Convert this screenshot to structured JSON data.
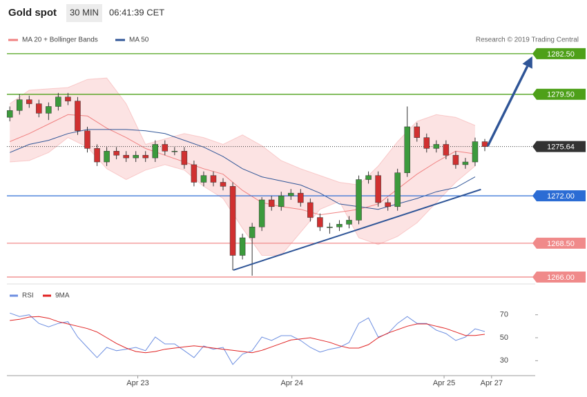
{
  "header": {
    "title": "Gold spot",
    "interval": "30 MIN",
    "time": "06:41:39 CET",
    "credit": "Research © 2019 Trading Central"
  },
  "chart_data": [
    {
      "type": "candlestick",
      "xlim": [
        -0.3,
        54.2
      ],
      "ylim": [
        1265.59,
        1283.41
      ],
      "x": [
        0,
        1,
        2,
        3,
        4,
        5,
        6,
        7,
        8,
        9,
        10,
        11,
        12,
        13,
        14,
        15,
        16,
        17,
        18,
        19,
        20,
        21,
        22,
        23,
        24,
        25,
        26,
        27,
        28,
        29,
        30,
        31,
        32,
        33,
        34,
        35,
        36,
        37,
        38,
        39,
        40,
        41,
        42,
        43,
        44,
        45,
        46,
        47,
        48,
        49
      ],
      "open": [
        1277.8,
        1278.3,
        1279.1,
        1278.8,
        1278.1,
        1278.6,
        1279.3,
        1279.0,
        1276.8,
        1275.5,
        1274.5,
        1275.3,
        1275.0,
        1274.8,
        1275.0,
        1274.8,
        1275.8,
        1275.3,
        1275.3,
        1274.3,
        1273.0,
        1273.5,
        1273.0,
        1272.7,
        1267.6,
        1268.9,
        1269.7,
        1271.7,
        1271.2,
        1272.0,
        1272.2,
        1271.5,
        1270.4,
        1269.7,
        1269.7,
        1269.9,
        1270.2,
        1273.2,
        1273.5,
        1271.5,
        1271.2,
        1273.7,
        1277.1,
        1276.3,
        1275.5,
        1275.8,
        1275.0,
        1274.3,
        1274.5,
        1276.0
      ],
      "high": [
        1278.6,
        1279.5,
        1279.4,
        1279.1,
        1278.9,
        1279.6,
        1279.6,
        1279.3,
        1277.1,
        1275.8,
        1275.6,
        1275.6,
        1275.3,
        1275.3,
        1275.3,
        1276.1,
        1276.1,
        1275.6,
        1275.6,
        1274.6,
        1273.8,
        1273.8,
        1273.3,
        1273.0,
        1269.2,
        1270.0,
        1271.9,
        1272.0,
        1272.3,
        1272.5,
        1272.5,
        1271.8,
        1270.7,
        1270.0,
        1270.2,
        1270.5,
        1273.5,
        1273.8,
        1273.8,
        1271.8,
        1274.0,
        1278.6,
        1277.4,
        1276.6,
        1276.1,
        1276.1,
        1275.3,
        1274.8,
        1276.3,
        1276.2
      ],
      "low": [
        1277.5,
        1278.0,
        1278.5,
        1277.8,
        1277.6,
        1278.3,
        1278.7,
        1276.5,
        1275.2,
        1274.2,
        1274.2,
        1274.7,
        1274.5,
        1274.5,
        1274.5,
        1274.5,
        1275.0,
        1275.0,
        1274.0,
        1272.7,
        1272.7,
        1272.7,
        1272.4,
        1266.5,
        1267.3,
        1266.1,
        1269.4,
        1270.9,
        1270.9,
        1271.7,
        1271.2,
        1270.1,
        1269.4,
        1269.2,
        1269.4,
        1269.6,
        1269.9,
        1272.9,
        1271.2,
        1270.9,
        1270.9,
        1273.4,
        1276.0,
        1275.2,
        1275.2,
        1274.7,
        1274.0,
        1274.0,
        1274.2,
        1275.3
      ],
      "close": [
        1278.3,
        1279.1,
        1278.8,
        1278.1,
        1278.6,
        1279.3,
        1279.0,
        1276.8,
        1275.5,
        1274.5,
        1275.3,
        1275.0,
        1274.8,
        1275.0,
        1274.8,
        1275.8,
        1275.3,
        1275.3,
        1274.3,
        1273.0,
        1273.5,
        1273.0,
        1272.7,
        1267.6,
        1268.9,
        1269.7,
        1271.7,
        1271.2,
        1272.0,
        1272.2,
        1271.5,
        1270.4,
        1269.7,
        1269.7,
        1269.9,
        1270.2,
        1273.2,
        1273.5,
        1271.5,
        1271.2,
        1273.7,
        1277.1,
        1276.3,
        1275.5,
        1275.8,
        1275.0,
        1274.3,
        1274.5,
        1276.0,
        1275.64
      ],
      "up_color": "#3c9a3c",
      "down_color": "#d03030",
      "series": [
        {
          "name": "MA 20 + Bollinger Bands",
          "color": "#f08080",
          "x": [
            0,
            2,
            4,
            6,
            8,
            10,
            12,
            14,
            16,
            18,
            20,
            22,
            24,
            26,
            28,
            30,
            32,
            34,
            36,
            38,
            40,
            42,
            44,
            46,
            48
          ],
          "values": [
            1276.0,
            1276.6,
            1277.3,
            1278.0,
            1277.9,
            1277.0,
            1276.3,
            1275.5,
            1275.0,
            1274.5,
            1274.0,
            1273.6,
            1272.4,
            1271.5,
            1271.2,
            1271.0,
            1270.6,
            1270.8,
            1271.0,
            1271.4,
            1272.5,
            1273.6,
            1274.5,
            1275.3,
            1275.1
          ],
          "upper": [
            1278.8,
            1279.8,
            1279.9,
            1280.0,
            1280.6,
            1280.7,
            1278.8,
            1275.8,
            1276.2,
            1276.6,
            1276.3,
            1275.8,
            1276.5,
            1275.7,
            1274.6,
            1274.0,
            1273.5,
            1273.0,
            1272.8,
            1274.2,
            1276.0,
            1277.5,
            1278.0,
            1277.8,
            1277.2
          ],
          "lower": [
            1274.5,
            1274.6,
            1275.2,
            1276.3,
            1275.6,
            1274.0,
            1273.2,
            1273.9,
            1274.3,
            1273.9,
            1272.7,
            1271.8,
            1269.6,
            1267.6,
            1267.6,
            1269.3,
            1271.0,
            1271.6,
            1268.9,
            1268.4,
            1269.0,
            1270.0,
            1271.5,
            1273.0,
            1274.2
          ]
        },
        {
          "name": "MA 50",
          "color": "#2f5597",
          "x": [
            0,
            2,
            4,
            6,
            8,
            10,
            12,
            14,
            16,
            18,
            20,
            22,
            24,
            26,
            28,
            30,
            32,
            34,
            36,
            38,
            40,
            42,
            44,
            46,
            48
          ],
          "values": [
            1275.2,
            1275.8,
            1276.1,
            1276.6,
            1276.9,
            1276.9,
            1276.9,
            1276.8,
            1276.6,
            1276.1,
            1275.6,
            1274.9,
            1274.0,
            1273.4,
            1273.1,
            1272.8,
            1272.2,
            1271.4,
            1271.2,
            1271.0,
            1271.4,
            1271.8,
            1272.3,
            1272.6,
            1273.4
          ]
        }
      ],
      "levels": [
        {
          "value": 1282.5,
          "label": "1282.50",
          "color": "#4ea019"
        },
        {
          "value": 1279.5,
          "label": "1279.50",
          "color": "#4ea019"
        },
        {
          "value": 1275.64,
          "color": "#333333"
        },
        {
          "value": 1272.0,
          "label": "1272.00",
          "color": "#2b6cd4"
        },
        {
          "value": 1268.5,
          "label": "1268.50",
          "color": "#f08a8a"
        },
        {
          "value": 1266.0,
          "label": "1266.00",
          "color": "#f08a8a"
        }
      ],
      "trend_line": {
        "x": [
          23.06,
          48.6
        ],
        "y": [
          1266.51,
          1272.47
        ],
        "color": "#2f5597"
      },
      "arrow": {
        "x": [
          49.3,
          53.9
        ],
        "y": [
          1275.67,
          1282.3
        ],
        "color": "#2f5597"
      },
      "xticks": [
        {
          "value": 13.2,
          "label": "Apr 23"
        },
        {
          "value": 29.1,
          "label": "Apr 24"
        },
        {
          "value": 44.8,
          "label": "Apr 25"
        },
        {
          "value": 49.7,
          "label": "Apr 27"
        }
      ]
    },
    {
      "type": "line",
      "xlim": [
        -0.3,
        54.2
      ],
      "ylim": [
        20,
        92
      ],
      "yticks": [
        30,
        50,
        70
      ],
      "x": [
        0,
        1,
        2,
        3,
        4,
        5,
        6,
        7,
        8,
        9,
        10,
        11,
        12,
        13,
        14,
        15,
        16,
        17,
        18,
        19,
        20,
        21,
        22,
        23,
        24,
        25,
        26,
        27,
        28,
        29,
        30,
        31,
        32,
        33,
        34,
        35,
        36,
        37,
        38,
        39,
        40,
        41,
        42,
        43,
        44,
        45,
        46,
        47,
        48,
        49
      ],
      "series": [
        {
          "name": "RSI",
          "color": "#6b8de0",
          "values": [
            71.5,
            68.5,
            70,
            62.5,
            59.5,
            62.5,
            64,
            50.6,
            41.6,
            32.7,
            41.6,
            38.7,
            40,
            41.6,
            38.7,
            50.6,
            44.6,
            44.6,
            38.7,
            32.7,
            42.8,
            40,
            41.6,
            26.7,
            35.7,
            38.7,
            50.6,
            47.6,
            51.8,
            51.8,
            47.6,
            41.6,
            37.5,
            40,
            41.6,
            45.8,
            62.5,
            67.3,
            50.6,
            53.6,
            62.5,
            68.5,
            62.5,
            62.5,
            56.6,
            53.6,
            47.6,
            50.6,
            57.8,
            55.4
          ]
        },
        {
          "name": "9MA",
          "color": "#e02020",
          "values": [
            65,
            66,
            68,
            68.5,
            67,
            64,
            62,
            60,
            58,
            55,
            50,
            45,
            41,
            38,
            37,
            38,
            40,
            41,
            42,
            43,
            42,
            41,
            40,
            39,
            38,
            37,
            39,
            42,
            45,
            48,
            49,
            50,
            48,
            46,
            43,
            41,
            41,
            44,
            50,
            54,
            57,
            60,
            62,
            62,
            60,
            58,
            55,
            52,
            52,
            53
          ]
        }
      ]
    }
  ]
}
